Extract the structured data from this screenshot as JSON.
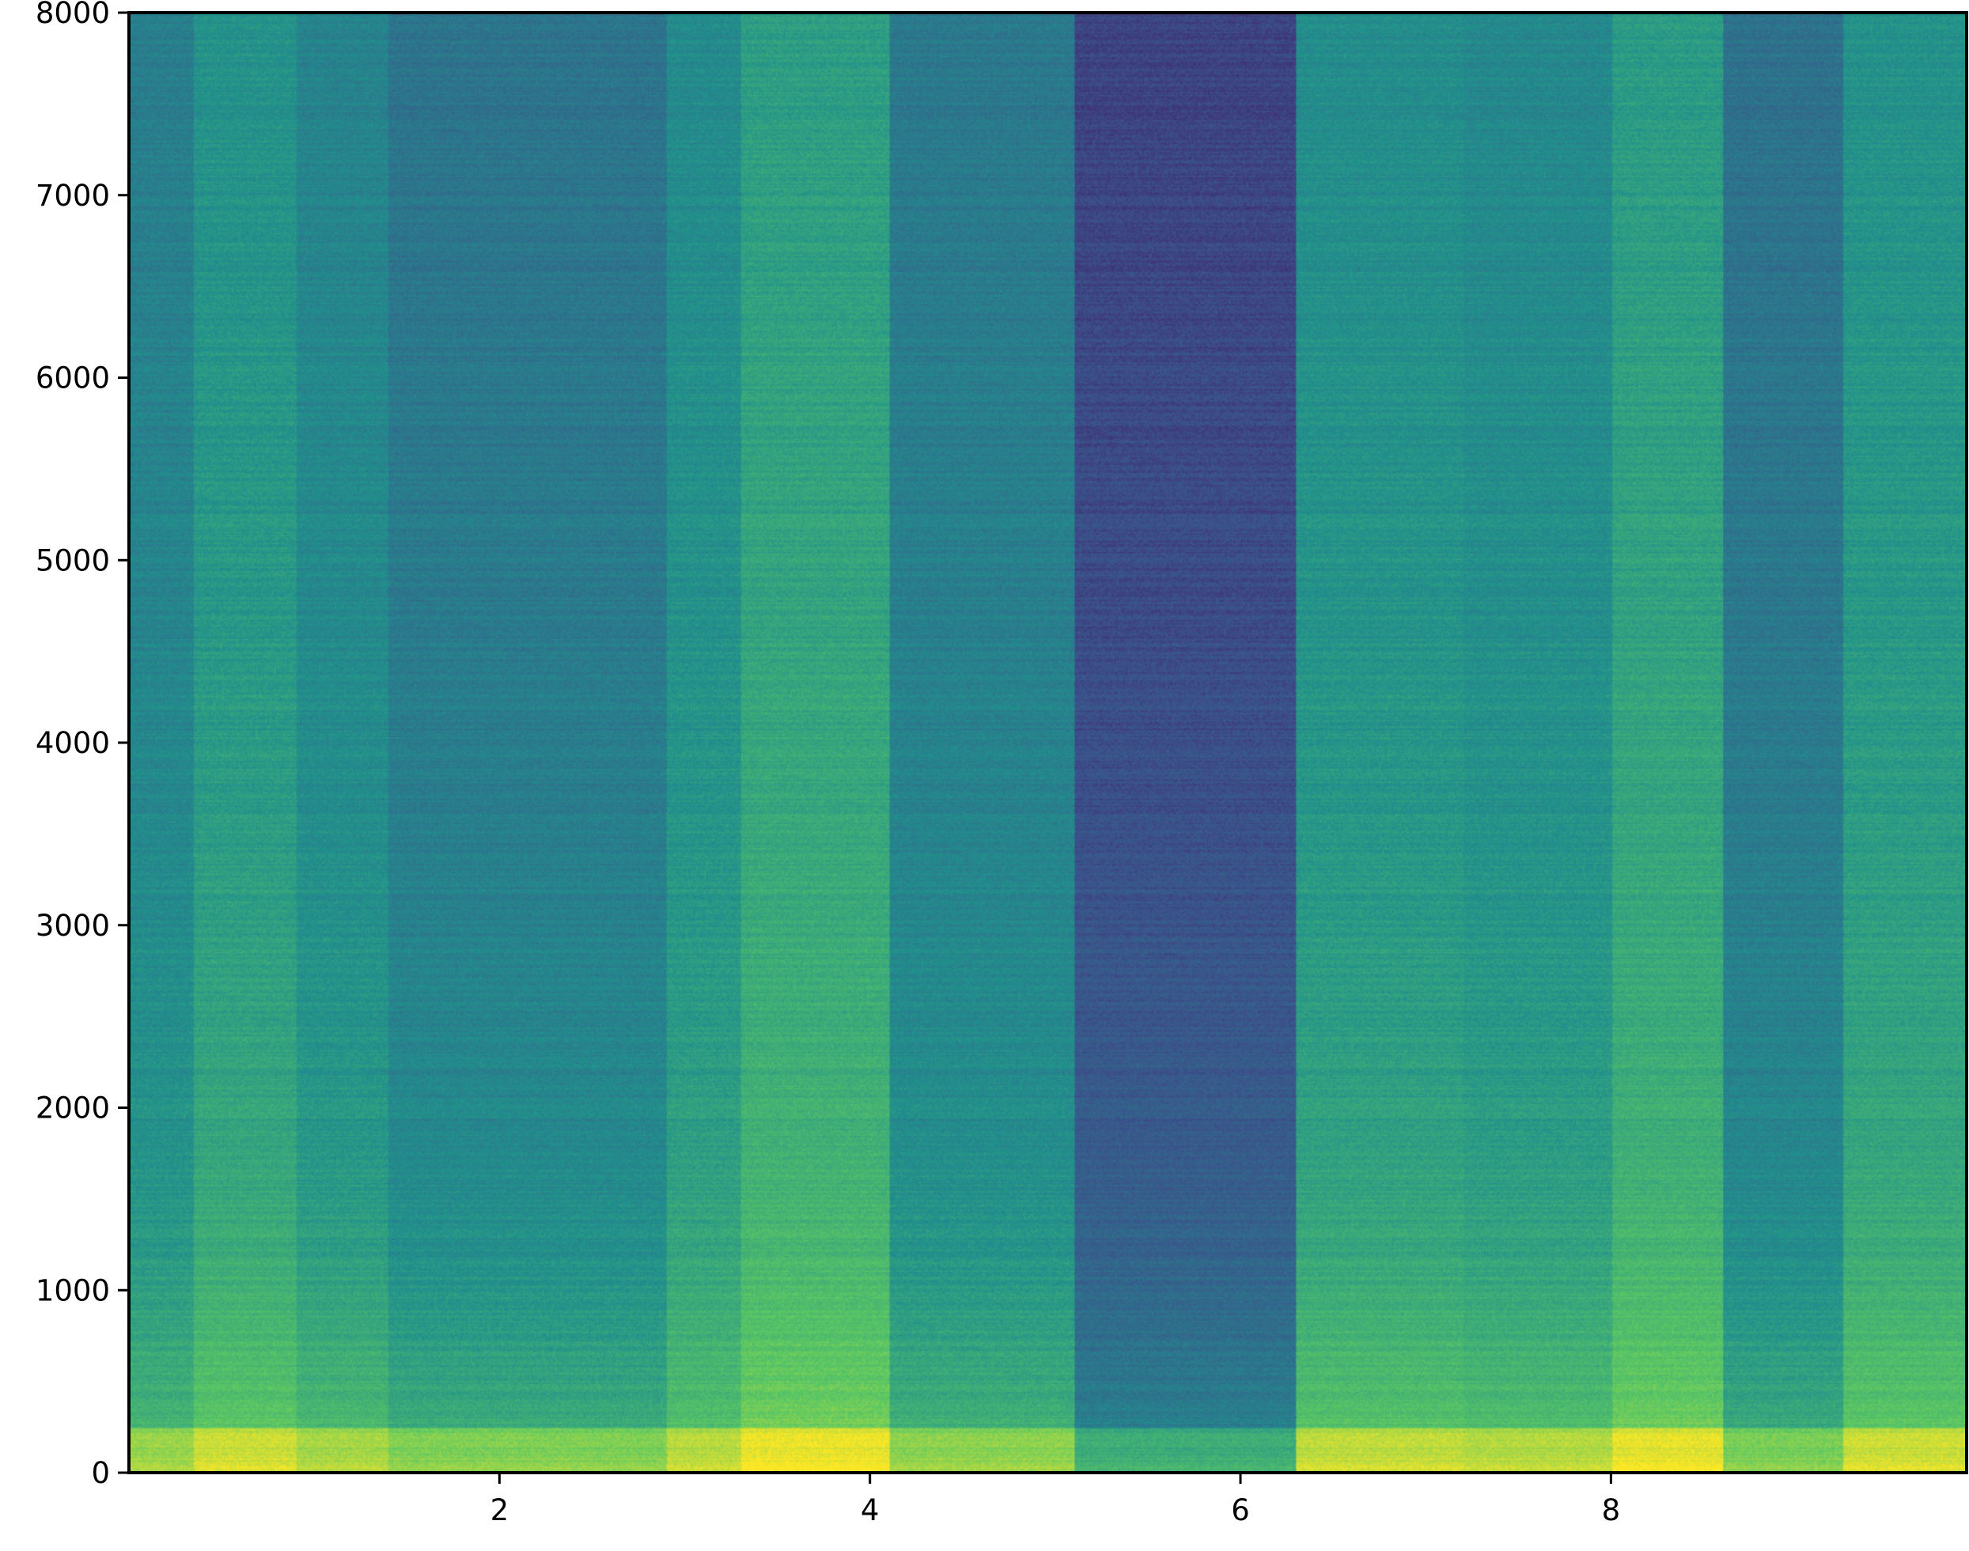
{
  "chart_data": {
    "type": "heatmap",
    "title": "",
    "xlabel": "",
    "ylabel": "",
    "xlim": [
      0,
      9.92
    ],
    "ylim": [
      0,
      8000
    ],
    "x_ticks": [
      2,
      4,
      6,
      8
    ],
    "x_tick_labels": [
      "2",
      "4",
      "6",
      "8"
    ],
    "y_ticks": [
      0,
      1000,
      2000,
      3000,
      4000,
      5000,
      6000,
      7000,
      8000
    ],
    "y_tick_labels": [
      "0",
      "1000",
      "2000",
      "3000",
      "4000",
      "5000",
      "6000",
      "7000",
      "8000"
    ],
    "grid": false,
    "legend": "none",
    "colormap": [
      "#440154",
      "#3b528b",
      "#21918c",
      "#5ec962",
      "#fde725"
    ],
    "segments": [
      {
        "t_start": 0.0,
        "t_end": 0.35,
        "energy": 0.5
      },
      {
        "t_start": 0.35,
        "t_end": 0.9,
        "energy": 0.58
      },
      {
        "t_start": 0.9,
        "t_end": 1.4,
        "energy": 0.52
      },
      {
        "t_start": 1.4,
        "t_end": 2.9,
        "energy": 0.46
      },
      {
        "t_start": 2.9,
        "t_end": 3.3,
        "energy": 0.55
      },
      {
        "t_start": 3.3,
        "t_end": 4.1,
        "energy": 0.63
      },
      {
        "t_start": 4.1,
        "t_end": 5.1,
        "energy": 0.48
      },
      {
        "t_start": 5.1,
        "t_end": 6.3,
        "energy": 0.28
      },
      {
        "t_start": 6.3,
        "t_end": 7.2,
        "energy": 0.56
      },
      {
        "t_start": 7.2,
        "t_end": 8.0,
        "energy": 0.54
      },
      {
        "t_start": 8.0,
        "t_end": 8.6,
        "energy": 0.62
      },
      {
        "t_start": 8.6,
        "t_end": 9.25,
        "energy": 0.45
      },
      {
        "t_start": 9.25,
        "t_end": 9.92,
        "energy": 0.58
      }
    ]
  }
}
